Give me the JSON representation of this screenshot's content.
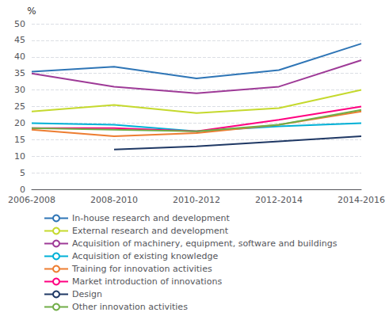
{
  "chart_data": {
    "type": "line",
    "categories": [
      "2006-2008",
      "2008-2010",
      "2010-2012",
      "2012-2014",
      "2014-2016"
    ],
    "series": [
      {
        "name": "In-house research and development",
        "color": "#2e75b6",
        "values": [
          35.5,
          37.0,
          33.5,
          36.0,
          44.0
        ]
      },
      {
        "name": "External research and development",
        "color": "#c5d92d",
        "values": [
          23.5,
          25.5,
          23.0,
          24.5,
          30.0
        ]
      },
      {
        "name": "Acquisition of machinery, equipment, software and buildings",
        "color": "#9e3a97",
        "values": [
          35.0,
          31.0,
          29.0,
          31.0,
          39.0
        ]
      },
      {
        "name": "Acquisition of existing knowledge",
        "color": "#00b0d6",
        "values": [
          20.0,
          19.5,
          17.5,
          19.0,
          20.0
        ]
      },
      {
        "name": "Training for innovation activities",
        "color": "#ed7d31",
        "values": [
          18.0,
          16.0,
          17.0,
          19.5,
          23.5
        ]
      },
      {
        "name": "Market introduction of innovations",
        "color": "#ff0080",
        "values": [
          18.5,
          18.5,
          17.5,
          21.0,
          25.0
        ]
      },
      {
        "name": "Design",
        "color": "#1f3864",
        "values": [
          null,
          12.0,
          13.0,
          14.5,
          16.0
        ]
      },
      {
        "name": "Other innovation activities",
        "color": "#70ad47",
        "values": [
          18.5,
          18.0,
          17.5,
          19.5,
          24.0
        ]
      }
    ],
    "ylabel": "%",
    "ylim": [
      0,
      50
    ],
    "yticks": [
      0,
      5,
      10,
      15,
      20,
      25,
      30,
      35,
      40,
      45,
      50
    ],
    "grid": true,
    "legend": "lower left"
  }
}
